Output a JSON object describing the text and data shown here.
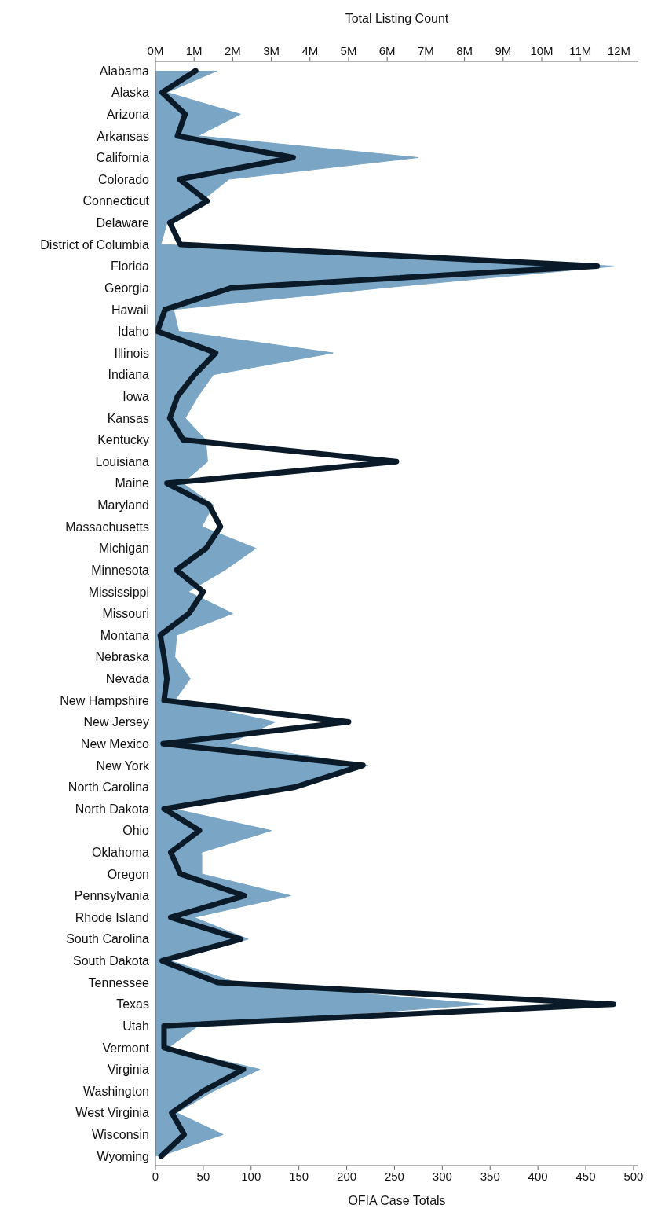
{
  "chart_data": {
    "type": "line",
    "orientation": "horizontal",
    "categories": [
      "Alabama",
      "Alaska",
      "Arizona",
      "Arkansas",
      "California",
      "Colorado",
      "Connecticut",
      "Delaware",
      "District of Columbia",
      "Florida",
      "Georgia",
      "Hawaii",
      "Idaho",
      "Illinois",
      "Indiana",
      "Iowa",
      "Kansas",
      "Kentucky",
      "Louisiana",
      "Maine",
      "Maryland",
      "Massachusetts",
      "Michigan",
      "Minnesota",
      "Mississippi",
      "Missouri",
      "Montana",
      "Nebraska",
      "Nevada",
      "New Hampshire",
      "New Jersey",
      "New Mexico",
      "New York",
      "North Carolina",
      "North Dakota",
      "Ohio",
      "Oklahoma",
      "Oregon",
      "Pennsylvania",
      "Rhode Island",
      "South Carolina",
      "South Dakota",
      "Tennessee",
      "Texas",
      "Utah",
      "Vermont",
      "Virginia",
      "Washington",
      "West Virginia",
      "Wisconsin",
      "Wyoming"
    ],
    "series": [
      {
        "type": "area",
        "axis": "x2",
        "color": "#7aa5c4",
        "values": [
          1.6,
          0.3,
          2.2,
          1.1,
          6.8,
          1.9,
          1.2,
          0.3,
          0.14,
          11.9,
          5.9,
          0.47,
          0.6,
          4.6,
          1.5,
          1.1,
          0.77,
          1.3,
          1.35,
          0.7,
          1.5,
          1.2,
          2.6,
          1.8,
          0.85,
          2.0,
          0.55,
          0.5,
          0.9,
          0.5,
          3.1,
          1.9,
          5.5,
          3.5,
          0.47,
          3.0,
          1.2,
          1.2,
          3.5,
          1.0,
          2.4,
          0.4,
          2.1,
          8.5,
          1.1,
          0.34,
          2.7,
          1.5,
          0.55,
          1.75,
          0.12
        ]
      },
      {
        "color": "#0a1a28",
        "values": [
          42,
          7,
          31,
          23,
          144,
          25,
          54,
          15,
          26,
          462,
          79,
          10,
          2,
          63,
          41,
          23,
          15,
          29,
          252,
          12,
          56,
          68,
          53,
          22,
          50,
          35,
          5,
          9,
          12,
          9,
          202,
          8,
          217,
          146,
          9,
          46,
          16,
          26,
          93,
          16,
          89,
          7,
          65,
          479,
          9,
          9,
          92,
          50,
          17,
          30,
          6
        ]
      }
    ],
    "xlabel": "OFIA Case Totals",
    "xlim": [
      0,
      505
    ],
    "xticks": [
      0,
      50,
      100,
      150,
      200,
      250,
      300,
      350,
      400,
      450,
      500
    ],
    "x2label": "Total Listing Count",
    "x2lim": [
      0,
      12.5
    ],
    "x2ticks": [
      {
        "value": 0,
        "label": "0M"
      },
      {
        "value": 1,
        "label": "1M"
      },
      {
        "value": 2,
        "label": "2M"
      },
      {
        "value": 3,
        "label": "3M"
      },
      {
        "value": 4,
        "label": "4M"
      },
      {
        "value": 5,
        "label": "5M"
      },
      {
        "value": 6,
        "label": "6M"
      },
      {
        "value": 7,
        "label": "7M"
      },
      {
        "value": 8,
        "label": "8M"
      },
      {
        "value": 9,
        "label": "9M"
      },
      {
        "value": 10,
        "label": "10M"
      },
      {
        "value": 11,
        "label": "11M"
      },
      {
        "value": 12,
        "label": "12M"
      }
    ]
  }
}
